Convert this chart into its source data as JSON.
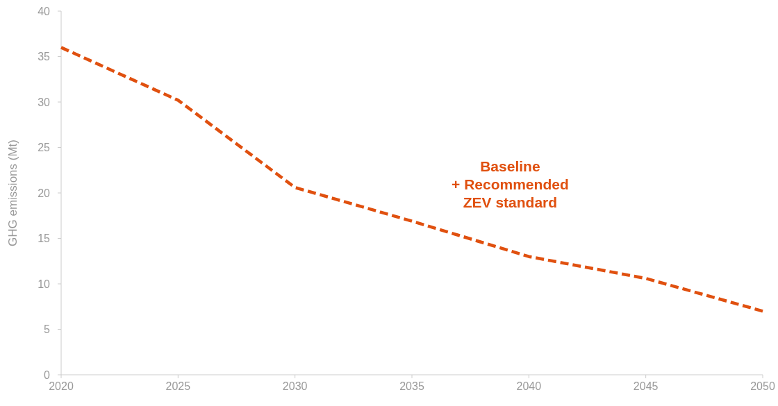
{
  "chart_data": {
    "type": "line",
    "ylabel": "GHG emissions (Mt)",
    "x": [
      2020,
      2025,
      2030,
      2035,
      2040,
      2045,
      2050
    ],
    "series": [
      {
        "name": "Baseline\n+ Recommended\nZEV standard",
        "color": "#e0500f",
        "values": [
          36.0,
          30.2,
          20.6,
          16.9,
          13.0,
          10.6,
          7.0
        ]
      }
    ],
    "xlim": [
      2020,
      2050
    ],
    "xticks": [
      2020,
      2025,
      2030,
      2035,
      2040,
      2045,
      2050
    ],
    "ylim": [
      0,
      40
    ],
    "yticks": [
      0,
      5,
      10,
      15,
      20,
      25,
      30,
      35,
      40
    ],
    "grid": false,
    "line_style": "dashed",
    "marker": "none"
  }
}
